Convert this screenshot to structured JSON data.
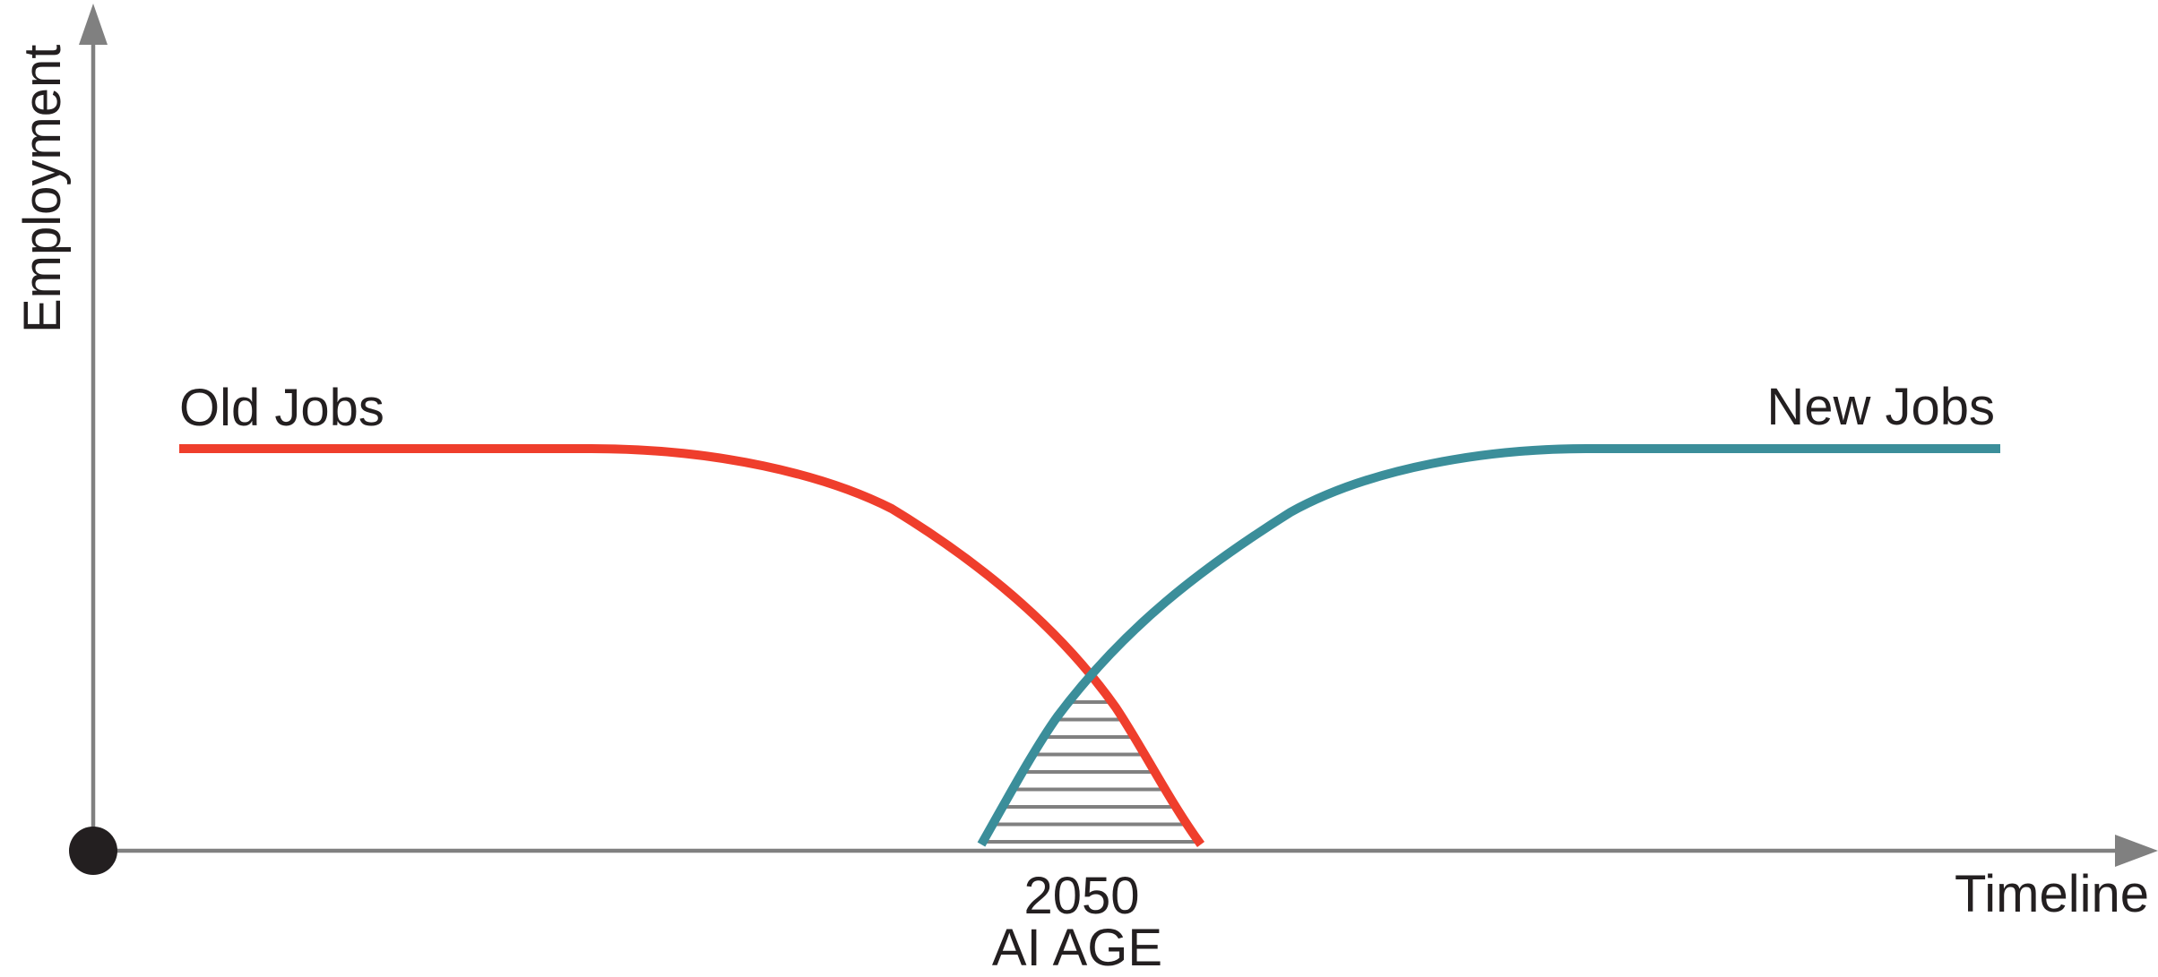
{
  "axes": {
    "y_label": "Employment",
    "x_label": "Timeline",
    "axis_color": "#808080"
  },
  "curves": {
    "old": {
      "label": "Old Jobs",
      "color": "#ef3e2c"
    },
    "new": {
      "label": "New Jobs",
      "color": "#3b8e9a"
    }
  },
  "marker": {
    "year": "2050",
    "caption": "AI AGE"
  },
  "hatch_color": "#808080",
  "origin_dot_color": "#231f20"
}
